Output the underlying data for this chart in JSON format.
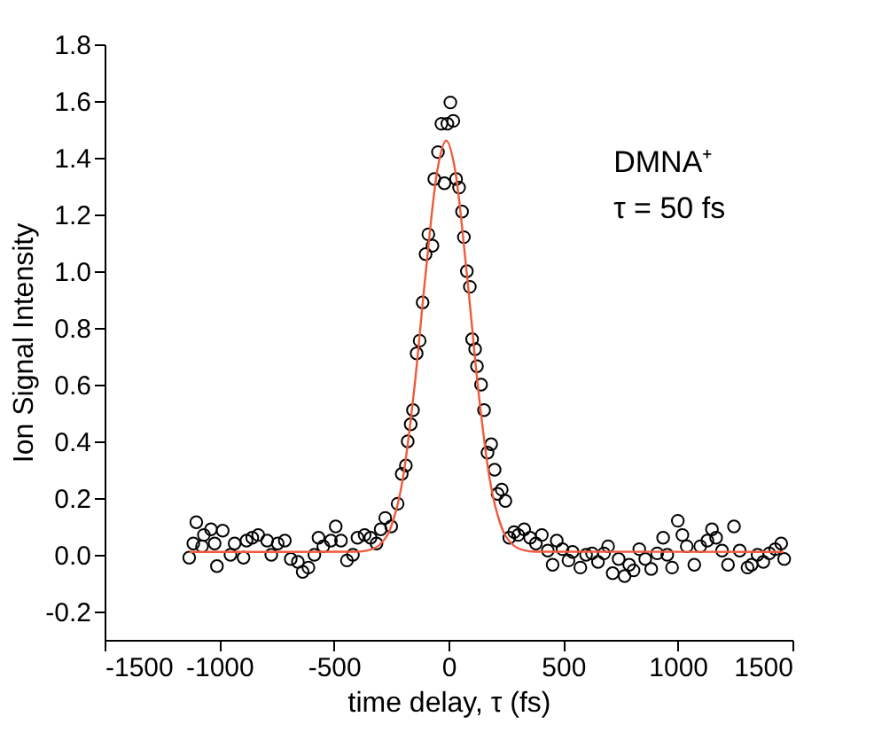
{
  "chart_data": {
    "type": "scatter",
    "xlabel": "time delay, τ (fs)",
    "ylabel": "Ion Signal Intensity",
    "xlim": [
      -1500,
      1500
    ],
    "xticks": [
      -1500,
      -1000,
      -500,
      0,
      500,
      1000,
      1500
    ],
    "ylim": [
      -0.3,
      1.8
    ],
    "yticks": [
      -0.2,
      {
        "value": 0,
        "label": "0.0"
      },
      0.2,
      0.4,
      0.6,
      0.8,
      {
        "value": 1,
        "label": "1.0"
      },
      1.2,
      1.4,
      1.6,
      1.8
    ],
    "grid": false,
    "marker": "circle",
    "annotations": [
      "DMNA⁺",
      "τ = 50 fs"
    ],
    "series": [
      {
        "color": "#000000",
        "x": [
          -1131,
          -1100,
          -1113,
          -1075,
          -1067,
          -1036,
          -1010,
          -1020,
          -985,
          -951,
          -933,
          -894,
          -881,
          -856,
          -830,
          -791,
          -773,
          -745,
          -714,
          -688,
          -657,
          -636,
          -611,
          -585,
          -567,
          -546,
          -513,
          -492,
          -469,
          -443,
          -417,
          -397,
          -366,
          -340,
          -314,
          -296,
          -276,
          -250,
          -222,
          -204,
          -186,
          -178,
          -165,
          -155,
          -139,
          -126,
          -113,
          -100,
          -88,
          -70,
          -62,
          -46,
          -31,
          -18,
          -5,
          8,
          21,
          33,
          46,
          59,
          67,
          80,
          93,
          103,
          116,
          124,
          142,
          155,
          170,
          186,
          201,
          214,
          232,
          248,
          265,
          286,
          304,
          330,
          356,
          381,
          407,
          433,
          454,
          472,
          497,
          523,
          541,
          575,
          600,
          626,
          652,
          678,
          696,
          716,
          742,
          768,
          788,
          807,
          832,
          858,
          884,
          910,
          936,
          954,
          975,
          1000,
          1020,
          1039,
          1072,
          1098,
          1129,
          1149,
          1167,
          1193,
          1219,
          1245,
          1270,
          1304,
          1322,
          1348,
          1373,
          1399,
          1425,
          1451,
          1464
        ],
        "values": [
          -0.01,
          0.115,
          0.04,
          0.03,
          0.07,
          0.09,
          -0.04,
          0.04,
          0.085,
          0.0,
          0.04,
          -0.01,
          0.05,
          0.06,
          0.07,
          0.05,
          0.0,
          0.04,
          0.05,
          -0.015,
          -0.025,
          -0.06,
          -0.045,
          0.0,
          0.06,
          0.03,
          0.05,
          0.1,
          0.05,
          -0.02,
          0.0,
          0.06,
          0.07,
          0.06,
          0.04,
          0.09,
          0.13,
          0.1,
          0.18,
          0.285,
          0.315,
          0.4,
          0.46,
          0.51,
          0.71,
          0.755,
          0.89,
          1.06,
          1.13,
          1.09,
          1.325,
          1.42,
          1.52,
          1.31,
          1.52,
          1.595,
          1.53,
          1.325,
          1.295,
          1.21,
          1.12,
          1.0,
          0.945,
          0.76,
          0.725,
          0.665,
          0.6,
          0.51,
          0.36,
          0.39,
          0.3,
          0.215,
          0.23,
          0.19,
          0.06,
          0.08,
          0.07,
          0.09,
          0.06,
          0.04,
          0.07,
          0.015,
          -0.035,
          0.05,
          0.02,
          -0.02,
          0.01,
          -0.045,
          0.0,
          0.005,
          -0.025,
          0.005,
          0.03,
          -0.065,
          -0.015,
          -0.075,
          -0.035,
          -0.055,
          0.02,
          -0.015,
          -0.05,
          0.005,
          0.06,
          0.0,
          -0.045,
          0.12,
          0.07,
          0.03,
          -0.035,
          0.03,
          0.05,
          0.09,
          0.06,
          0.015,
          -0.035,
          0.1,
          0.015,
          -0.045,
          -0.035,
          0.0,
          -0.025,
          0.005,
          0.02,
          0.04,
          -0.015
        ]
      },
      {
        "type": "line",
        "color": "#f05a3c",
        "line_style": "solid",
        "marker": "none",
        "x": [
          -1130,
          -400,
          -350,
          -300,
          -250,
          -200,
          -150,
          -100,
          -50,
          -10,
          30,
          80,
          130,
          180,
          230,
          280,
          330,
          380,
          1460
        ],
        "values": [
          0.01,
          0.011,
          0.016,
          0.036,
          0.1,
          0.265,
          0.58,
          0.99,
          1.35,
          1.46,
          1.35,
          0.99,
          0.58,
          0.265,
          0.1,
          0.036,
          0.016,
          0.011,
          0.01
        ]
      }
    ]
  }
}
